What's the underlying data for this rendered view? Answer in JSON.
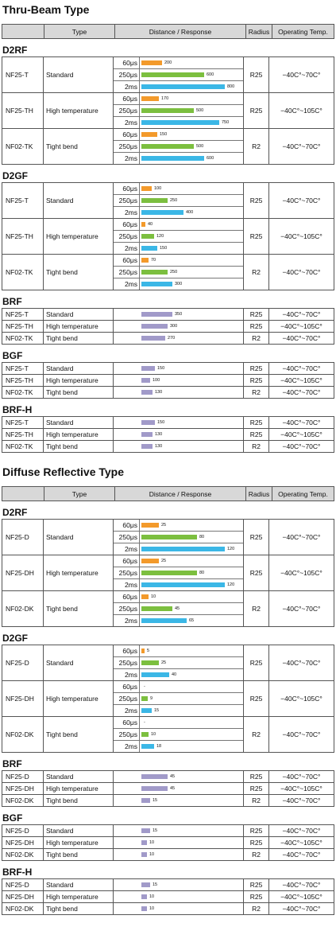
{
  "header": {
    "type": "Type",
    "distance": "Distance / Response",
    "radius": "Radius",
    "temp": "Operating Temp."
  },
  "colors": {
    "r60": "#f39a2b",
    "r250": "#7cbf3f",
    "r2ms": "#3bb7e6",
    "simple": "#a19ac9"
  },
  "groups": [
    {
      "title": "Thru-Beam Type",
      "sections": [
        {
          "name": "D2RF",
          "kind": "response",
          "rows": [
            {
              "model": "NF25-T",
              "type": "Standard",
              "radius": "R25",
              "temp": "−40C°~70C°",
              "resp": [
                {
                  "label": "60μs",
                  "value": "200",
                  "frac": 0.25
                },
                {
                  "label": "250μs",
                  "value": "600",
                  "frac": 0.75
                },
                {
                  "label": "2ms",
                  "value": "800",
                  "frac": 1.0
                }
              ]
            },
            {
              "model": "NF25-TH",
              "type": "High temperature",
              "radius": "R25",
              "temp": "−40C°~105C°",
              "resp": [
                {
                  "label": "60μs",
                  "value": "170",
                  "frac": 0.2125
                },
                {
                  "label": "250μs",
                  "value": "500",
                  "frac": 0.625
                },
                {
                  "label": "2ms",
                  "value": "750",
                  "frac": 0.9375
                }
              ]
            },
            {
              "model": "NF02-TK",
              "type": "Tight bend",
              "radius": "R2",
              "temp": "−40C°~70C°",
              "resp": [
                {
                  "label": "60μs",
                  "value": "150",
                  "frac": 0.1875
                },
                {
                  "label": "250μs",
                  "value": "500",
                  "frac": 0.625
                },
                {
                  "label": "2ms",
                  "value": "600",
                  "frac": 0.75
                }
              ]
            }
          ]
        },
        {
          "name": "D2GF",
          "kind": "response",
          "rows": [
            {
              "model": "NF25-T",
              "type": "Standard",
              "radius": "R25",
              "temp": "−40C°~70C°",
              "resp": [
                {
                  "label": "60μs",
                  "value": "100",
                  "frac": 0.125
                },
                {
                  "label": "250μs",
                  "value": "250",
                  "frac": 0.3125
                },
                {
                  "label": "2ms",
                  "value": "400",
                  "frac": 0.5
                }
              ]
            },
            {
              "model": "NF25-TH",
              "type": "High temperature",
              "radius": "R25",
              "temp": "−40C°~105C°",
              "resp": [
                {
                  "label": "60μs",
                  "value": "40",
                  "frac": 0.05
                },
                {
                  "label": "250μs",
                  "value": "120",
                  "frac": 0.15
                },
                {
                  "label": "2ms",
                  "value": "150",
                  "frac": 0.1875
                }
              ]
            },
            {
              "model": "NF02-TK",
              "type": "Tight bend",
              "radius": "R2",
              "temp": "−40C°~70C°",
              "resp": [
                {
                  "label": "60μs",
                  "value": "70",
                  "frac": 0.0875
                },
                {
                  "label": "250μs",
                  "value": "250",
                  "frac": 0.3125
                },
                {
                  "label": "2ms",
                  "value": "300",
                  "frac": 0.375
                }
              ]
            }
          ]
        },
        {
          "name": "BRF",
          "kind": "simple",
          "rows": [
            {
              "model": "NF25-T",
              "type": "Standard",
              "radius": "R25",
              "temp": "−40C°~70C°",
              "value": "350",
              "frac": 0.4375
            },
            {
              "model": "NF25-TH",
              "type": "High temperature",
              "radius": "R25",
              "temp": "−40C°~105C°",
              "value": "300",
              "frac": 0.375
            },
            {
              "model": "NF02-TK",
              "type": "Tight bend",
              "radius": "R2",
              "temp": "−40C°~70C°",
              "value": "270",
              "frac": 0.3375
            }
          ]
        },
        {
          "name": "BGF",
          "kind": "simple",
          "rows": [
            {
              "model": "NF25-T",
              "type": "Standard",
              "radius": "R25",
              "temp": "−40C°~70C°",
              "value": "150",
              "frac": 0.1875
            },
            {
              "model": "NF25-TH",
              "type": "High temperature",
              "radius": "R25",
              "temp": "−40C°~105C°",
              "value": "100",
              "frac": 0.125
            },
            {
              "model": "NF02-TK",
              "type": "Tight bend",
              "radius": "R2",
              "temp": "−40C°~70C°",
              "value": "130",
              "frac": 0.1625
            }
          ]
        },
        {
          "name": "BRF-H",
          "kind": "simple",
          "rows": [
            {
              "model": "NF25-T",
              "type": "Standard",
              "radius": "R25",
              "temp": "−40C°~70C°",
              "value": "150",
              "frac": 0.1875
            },
            {
              "model": "NF25-TH",
              "type": "High temperature",
              "radius": "R25",
              "temp": "−40C°~105C°",
              "value": "130",
              "frac": 0.1625
            },
            {
              "model": "NF02-TK",
              "type": "Tight bend",
              "radius": "R2",
              "temp": "−40C°~70C°",
              "value": "130",
              "frac": 0.1625
            }
          ]
        }
      ]
    },
    {
      "title": "Diffuse Reflective Type",
      "sections": [
        {
          "name": "D2RF",
          "kind": "response",
          "rows": [
            {
              "model": "NF25-D",
              "type": "Standard",
              "radius": "R25",
              "temp": "−40C°~70C°",
              "resp": [
                {
                  "label": "60μs",
                  "value": "25",
                  "frac": 0.2083
                },
                {
                  "label": "250μs",
                  "value": "80",
                  "frac": 0.6667
                },
                {
                  "label": "2ms",
                  "value": "120",
                  "frac": 1.0
                }
              ]
            },
            {
              "model": "NF25-DH",
              "type": "High temperature",
              "radius": "R25",
              "temp": "−40C°~105C°",
              "resp": [
                {
                  "label": "60μs",
                  "value": "25",
                  "frac": 0.2083
                },
                {
                  "label": "250μs",
                  "value": "80",
                  "frac": 0.6667
                },
                {
                  "label": "2ms",
                  "value": "120",
                  "frac": 1.0
                }
              ]
            },
            {
              "model": "NF02-DK",
              "type": "Tight bend",
              "radius": "R2",
              "temp": "−40C°~70C°",
              "resp": [
                {
                  "label": "60μs",
                  "value": "10",
                  "frac": 0.0833
                },
                {
                  "label": "250μs",
                  "value": "45",
                  "frac": 0.375
                },
                {
                  "label": "2ms",
                  "value": "65",
                  "frac": 0.5417
                }
              ]
            }
          ]
        },
        {
          "name": "D2GF",
          "kind": "response",
          "rows": [
            {
              "model": "NF25-D",
              "type": "Standard",
              "radius": "R25",
              "temp": "−40C°~70C°",
              "resp": [
                {
                  "label": "60μs",
                  "value": "5",
                  "frac": 0.0417
                },
                {
                  "label": "250μs",
                  "value": "25",
                  "frac": 0.2083
                },
                {
                  "label": "2ms",
                  "value": "40",
                  "frac": 0.3333
                }
              ]
            },
            {
              "model": "NF25-DH",
              "type": "High temperature",
              "radius": "R25",
              "temp": "−40C°~105C°",
              "resp": [
                {
                  "label": "60μs",
                  "value": "-",
                  "frac": 0
                },
                {
                  "label": "250μs",
                  "value": "9",
                  "frac": 0.075
                },
                {
                  "label": "2ms",
                  "value": "15",
                  "frac": 0.125
                }
              ]
            },
            {
              "model": "NF02-DK",
              "type": "Tight bend",
              "radius": "R2",
              "temp": "−40C°~70C°",
              "resp": [
                {
                  "label": "60μs",
                  "value": "-",
                  "frac": 0
                },
                {
                  "label": "250μs",
                  "value": "10",
                  "frac": 0.0833
                },
                {
                  "label": "2ms",
                  "value": "18",
                  "frac": 0.15
                }
              ]
            }
          ]
        },
        {
          "name": "BRF",
          "kind": "simple",
          "rows": [
            {
              "model": "NF25-D",
              "type": "Standard",
              "radius": "R25",
              "temp": "−40C°~70C°",
              "value": "45",
              "frac": 0.375
            },
            {
              "model": "NF25-DH",
              "type": "High temperature",
              "radius": "R25",
              "temp": "−40C°~105C°",
              "value": "45",
              "frac": 0.375
            },
            {
              "model": "NF02-DK",
              "type": "Tight bend",
              "radius": "R2",
              "temp": "−40C°~70C°",
              "value": "15",
              "frac": 0.125
            }
          ]
        },
        {
          "name": "BGF",
          "kind": "simple",
          "rows": [
            {
              "model": "NF25-D",
              "type": "Standard",
              "radius": "R25",
              "temp": "−40C°~70C°",
              "value": "15",
              "frac": 0.125
            },
            {
              "model": "NF25-DH",
              "type": "High temperature",
              "radius": "R25",
              "temp": "−40C°~105C°",
              "value": "10",
              "frac": 0.0833
            },
            {
              "model": "NF02-DK",
              "type": "Tight bend",
              "radius": "R2",
              "temp": "−40C°~70C°",
              "value": "10",
              "frac": 0.0833
            }
          ]
        },
        {
          "name": "BRF-H",
          "kind": "simple",
          "rows": [
            {
              "model": "NF25-D",
              "type": "Standard",
              "radius": "R25",
              "temp": "−40C°~70C°",
              "value": "15",
              "frac": 0.125
            },
            {
              "model": "NF25-DH",
              "type": "High temperature",
              "radius": "R25",
              "temp": "−40C°~105C°",
              "value": "10",
              "frac": 0.0833
            },
            {
              "model": "NF02-DK",
              "type": "Tight bend",
              "radius": "R2",
              "temp": "−40C°~70C°",
              "value": "10",
              "frac": 0.0833
            }
          ]
        }
      ]
    }
  ]
}
